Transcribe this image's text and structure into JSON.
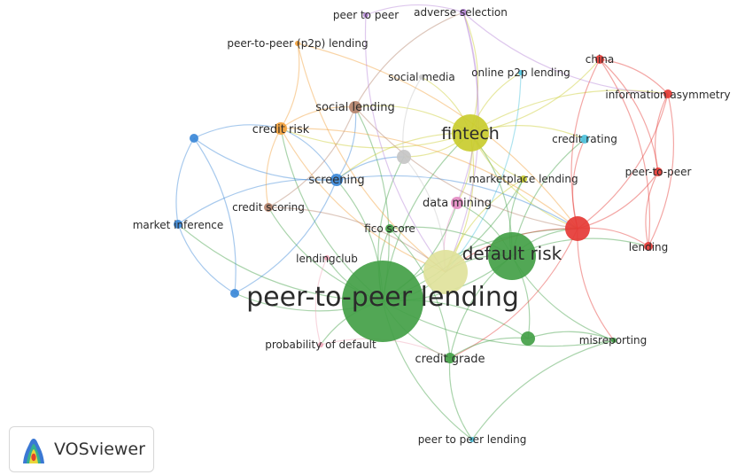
{
  "app": {
    "name": "VOSviewer"
  },
  "clusters": {
    "red": "#e53935",
    "green": "#43a047",
    "blue": "#3b88d8",
    "yellow": "#c9cc2e",
    "purple": "#b585d6",
    "orange": "#f2a03a",
    "cyan": "#4cc1dc",
    "brown": "#b4826b",
    "pink": "#e58cc4",
    "gray": "#c6c6c6",
    "lightyellow": "#dfe29b",
    "lightpink": "#f0a6b8"
  },
  "nodes": [
    {
      "id": "peer-to-peer-lending",
      "label": "peer-to-peer lending",
      "cluster": "green",
      "weight": 10
    },
    {
      "id": "default-risk",
      "label": "default risk",
      "cluster": "green",
      "weight": 5.5
    },
    {
      "id": "fintech",
      "label": "fintech",
      "cluster": "yellow",
      "weight": 4
    },
    {
      "id": "unlabeled-lightyellow",
      "label": "",
      "cluster": "lightyellow",
      "weight": 4.5
    },
    {
      "id": "fico-score",
      "label": "fico score",
      "cluster": "green",
      "weight": 1
    },
    {
      "id": "credit-grade",
      "label": "credit grade",
      "cluster": "green",
      "weight": 1
    },
    {
      "id": "unlabeled-green",
      "label": "",
      "cluster": "green",
      "weight": 1.5
    },
    {
      "id": "misreporting",
      "label": "misreporting",
      "cluster": "green",
      "weight": 0.7
    },
    {
      "id": "screening",
      "label": "screening",
      "cluster": "blue",
      "weight": 1.5
    },
    {
      "id": "market-inference",
      "label": "market inference",
      "cluster": "blue",
      "weight": 1
    },
    {
      "id": "unlabeled-blue-top",
      "label": "",
      "cluster": "blue",
      "weight": 0.8
    },
    {
      "id": "unlabeled-blue-bottom",
      "label": "",
      "cluster": "blue",
      "weight": 0.8
    },
    {
      "id": "credit-risk",
      "label": "credit risk",
      "cluster": "orange",
      "weight": 1.5
    },
    {
      "id": "peer-to-peer-p2p-lending",
      "label": "peer-to-peer (p2p) lending",
      "cluster": "orange",
      "weight": 0.7
    },
    {
      "id": "marketplace-lending",
      "label": "marketplace lending",
      "cluster": "yellow",
      "weight": 1
    },
    {
      "id": "social-lending",
      "label": "social lending",
      "cluster": "brown",
      "weight": 1.5
    },
    {
      "id": "credit-scoring",
      "label": "credit scoring",
      "cluster": "brown",
      "weight": 1
    },
    {
      "id": "social-media",
      "label": "social media",
      "cluster": "gray",
      "weight": 0.7
    },
    {
      "id": "unlabeled-gray",
      "label": "",
      "cluster": "gray",
      "weight": 1.5
    },
    {
      "id": "data-mining",
      "label": "data mining",
      "cluster": "pink",
      "weight": 1.5
    },
    {
      "id": "lendingclub",
      "label": "lendingclub",
      "cluster": "lightpink",
      "weight": 0.6
    },
    {
      "id": "probability-of-default",
      "label": "probability of default",
      "cluster": "lightpink",
      "weight": 0.6
    },
    {
      "id": "peer-to-peer",
      "label": "peer-to-peer",
      "cluster": "red",
      "weight": 1
    },
    {
      "id": "china",
      "label": "china",
      "cluster": "red",
      "weight": 0.8
    },
    {
      "id": "information-asymmetry",
      "label": "information asymmetry",
      "cluster": "red",
      "weight": 0.8
    },
    {
      "id": "lending",
      "label": "lending",
      "cluster": "red",
      "weight": 0.8
    },
    {
      "id": "unlabeled-red",
      "label": "",
      "cluster": "red",
      "weight": 2.5
    },
    {
      "id": "online-p2p-lending",
      "label": "online p2p lending",
      "cluster": "cyan",
      "weight": 0.6
    },
    {
      "id": "credit-rating",
      "label": "credit rating",
      "cluster": "cyan",
      "weight": 1
    },
    {
      "id": "peer-to-peer-lending-spaced",
      "label": "peer to peer lending",
      "cluster": "cyan",
      "weight": 0.6
    },
    {
      "id": "peer-to-peer-spaced",
      "label": "peer to peer",
      "cluster": "purple",
      "weight": 0.6
    },
    {
      "id": "adverse-selection",
      "label": "adverse selection",
      "cluster": "purple",
      "weight": 0.8
    }
  ]
}
